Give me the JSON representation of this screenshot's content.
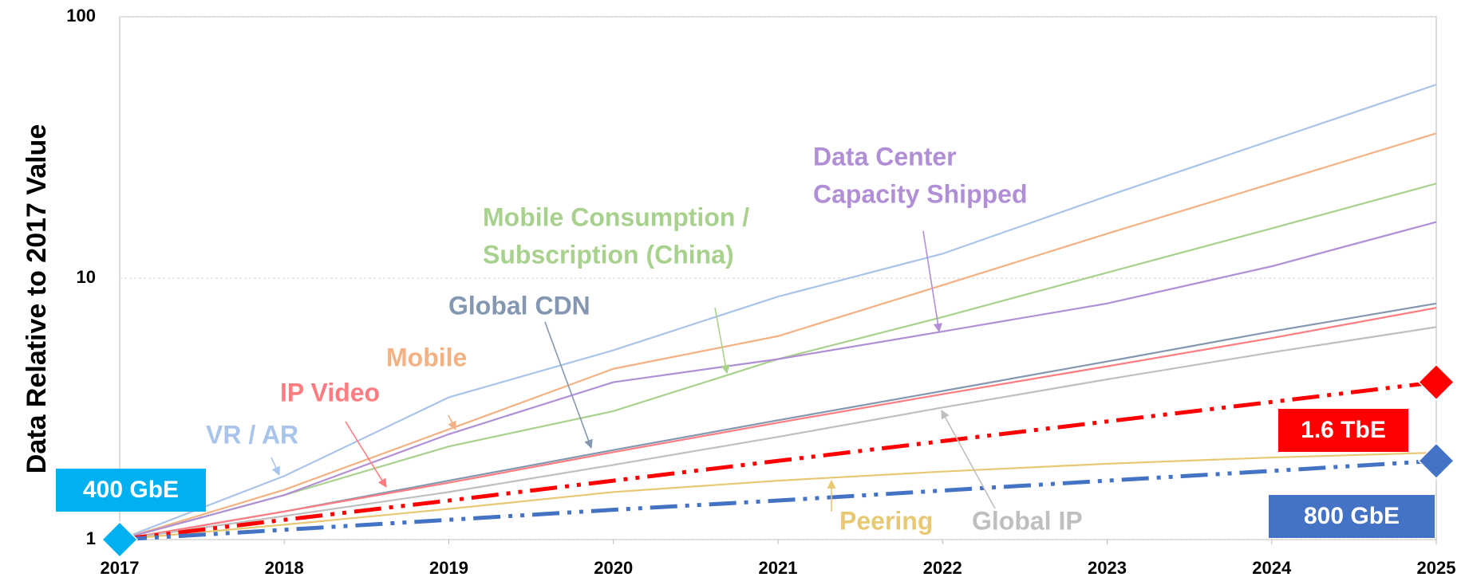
{
  "chart_data": {
    "type": "line",
    "y_label": "Data Relative to 2017 Value",
    "log_y": true,
    "grid": true,
    "x": [
      2017,
      2018,
      2019,
      2020,
      2021,
      2022,
      2023,
      2024,
      2025
    ],
    "xlim": [
      2017,
      2025
    ],
    "xticks": [
      2017,
      2018,
      2019,
      2020,
      2021,
      2022,
      2023,
      2024,
      2025
    ],
    "ylim": [
      1,
      100
    ],
    "yticks": [
      1,
      10,
      100
    ],
    "series": [
      {
        "label": [
          "VR / AR"
        ],
        "color": "#a9c4eb",
        "dash": "solid",
        "values": [
          1,
          1.75,
          3.5,
          5.3,
          8.5,
          12.4,
          20.6,
          33.7,
          55
        ]
      },
      {
        "label": [
          "Mobile"
        ],
        "color": "#f4b183",
        "dash": "solid",
        "values": [
          1,
          1.55,
          2.64,
          4.5,
          6,
          9.4,
          14.8,
          23,
          35.8
        ]
      },
      {
        "label": [
          "Mobile Consumption /",
          "Subscription (China)"
        ],
        "color": "#a9d18e",
        "dash": "solid",
        "values": [
          1,
          1.48,
          2.27,
          3.1,
          4.9,
          7.1,
          10.5,
          15.5,
          23
        ]
      },
      {
        "label": [
          "Data Center",
          "Capacity Shipped"
        ],
        "color": "#b18fd6",
        "dash": "solid",
        "values": [
          1,
          1.48,
          2.53,
          4,
          4.9,
          6.25,
          8,
          11.1,
          16.4
        ]
      },
      {
        "label": [
          "Global CDN"
        ],
        "color": "#8497b0",
        "dash": "solid",
        "values": [
          1,
          1.28,
          1.68,
          2.2,
          2.86,
          3.7,
          4.8,
          6.25,
          8
        ]
      },
      {
        "label": [
          "IP Video"
        ],
        "color": "#ff7c80",
        "dash": "solid",
        "values": [
          1,
          1.28,
          1.65,
          2.16,
          2.8,
          3.6,
          4.6,
          5.9,
          7.7
        ]
      },
      {
        "label": [
          "Global IP"
        ],
        "color": "#bfbfbf",
        "dash": "solid",
        "values": [
          1,
          1.23,
          1.52,
          1.93,
          2.47,
          3.2,
          4.1,
          5.2,
          6.5
        ]
      },
      {
        "label": [
          "Peering"
        ],
        "color": "#e8c872",
        "dash": "solid",
        "values": [
          1,
          1.14,
          1.31,
          1.52,
          1.68,
          1.82,
          1.95,
          2.06,
          2.15
        ]
      },
      {
        "label": [
          "1.6 TbE"
        ],
        "color": "#ff0000",
        "dash": "dashdotdot",
        "values": [
          1,
          1.19,
          1.41,
          1.68,
          2,
          2.38,
          2.83,
          3.36,
          4
        ]
      },
      {
        "label": [
          "800 GbE"
        ],
        "color": "#4472c4",
        "dash": "dashdotdot",
        "values": [
          1,
          1.09,
          1.19,
          1.3,
          1.41,
          1.54,
          1.68,
          1.83,
          2
        ]
      }
    ],
    "annotations": [
      {
        "text": "400 GbE",
        "color": "#00b0f0"
      }
    ]
  }
}
